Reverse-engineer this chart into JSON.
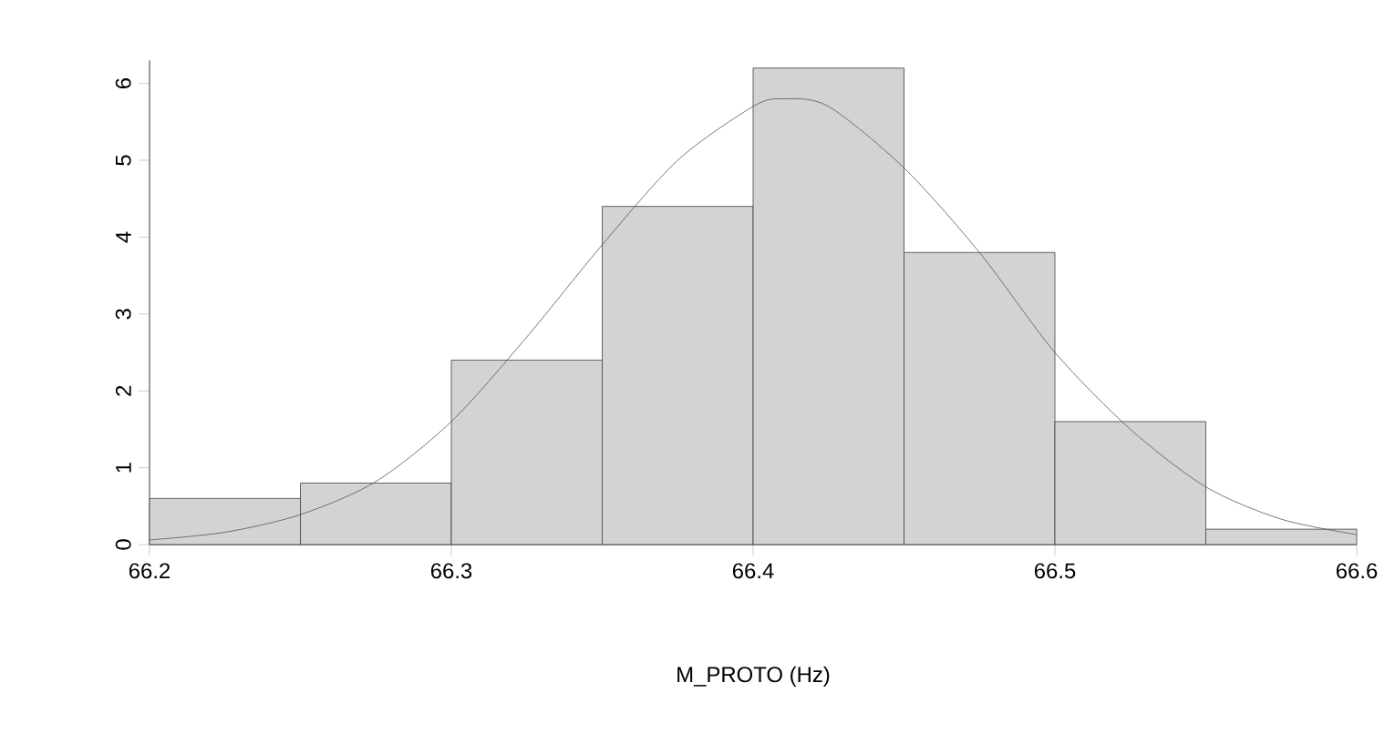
{
  "chart_data": {
    "type": "histogram",
    "xlabel": "M_PROTO (Hz)",
    "bins": [
      66.2,
      66.25,
      66.3,
      66.35,
      66.4,
      66.45,
      66.5,
      66.55,
      66.6
    ],
    "values": [
      0.6,
      0.8,
      2.4,
      4.4,
      6.2,
      3.8,
      1.6,
      0.2
    ],
    "color": "#d3d3d3",
    "series": [
      {
        "type": "line",
        "color": "#555555",
        "x": [
          66.2,
          66.225,
          66.25,
          66.275,
          66.3,
          66.325,
          66.35,
          66.375,
          66.4,
          66.41,
          66.425,
          66.45,
          66.475,
          66.5,
          66.525,
          66.55,
          66.575,
          66.6
        ],
        "values": [
          0.06,
          0.16,
          0.39,
          0.82,
          1.6,
          2.7,
          3.9,
          5.0,
          5.7,
          5.8,
          5.7,
          4.9,
          3.8,
          2.5,
          1.5,
          0.75,
          0.33,
          0.13
        ]
      }
    ],
    "xlim": [
      66.2,
      66.6
    ],
    "ylim": [
      0,
      6.3
    ],
    "xticks": [
      66.2,
      66.3,
      66.4,
      66.5,
      66.6
    ],
    "yticks": [
      0,
      1,
      2,
      3,
      4,
      5,
      6
    ],
    "grid": false
  }
}
